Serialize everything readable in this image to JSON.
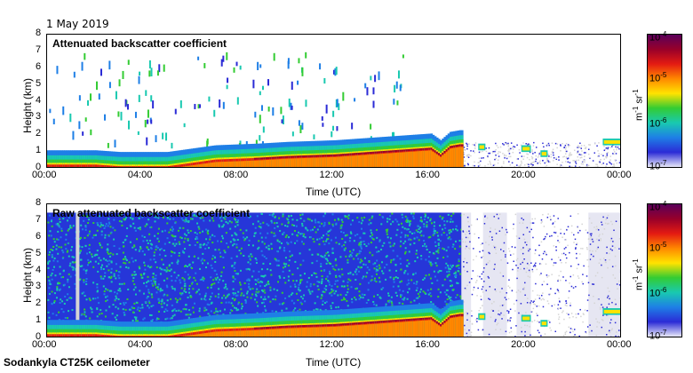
{
  "header": {
    "date": "1 May 2019"
  },
  "footer": {
    "instrument": "Sodankyla CT25K ceilometer"
  },
  "colors": {
    "colormap": [
      "#e8e8f8",
      "#2b2bd6",
      "#1e7fe6",
      "#19c9b0",
      "#33cc33",
      "#ffe300",
      "#ff8800",
      "#e41b12",
      "#98002a",
      "#5a005a"
    ],
    "missing": "#d4d4d4"
  },
  "chart_data": [
    {
      "type": "heatmap",
      "title": "Attenuated backscatter coefficient",
      "xlabel": "Time (UTC)",
      "ylabel": "Height (km)",
      "x_ticks": [
        "00:00",
        "04:00",
        "08:00",
        "12:00",
        "16:00",
        "20:00",
        "00:00"
      ],
      "y_ticks": [
        "0",
        "1",
        "2",
        "3",
        "4",
        "5",
        "6",
        "7",
        "8"
      ],
      "xlim_hours": [
        0,
        24
      ],
      "ylim_km": [
        0,
        8
      ],
      "colorbar": {
        "ticks": [
          "10-7",
          "10-6",
          "10-5",
          "10-4"
        ],
        "unit": "m-1 sr-1",
        "scale": "log",
        "range": [
          1e-07,
          0.0001
        ]
      },
      "boundary_layer_top_km": [
        [
          0,
          0.2
        ],
        [
          2,
          0.2
        ],
        [
          3,
          0.1
        ],
        [
          5,
          0.1
        ],
        [
          6,
          0.3
        ],
        [
          7,
          0.5
        ],
        [
          8.8,
          0.6
        ],
        [
          10,
          0.7
        ],
        [
          12,
          0.8
        ],
        [
          14,
          1.0
        ],
        [
          16,
          1.2
        ],
        [
          16.4,
          0.8
        ],
        [
          16.8,
          1.3
        ],
        [
          17.2,
          1.4
        ]
      ],
      "clear_sky_hours": [
        17.3,
        24
      ],
      "noise_filtered": true
    },
    {
      "type": "heatmap",
      "title": "Raw attenuated backscatter coefficient",
      "xlabel": "Time (UTC)",
      "ylabel": "Height (km)",
      "x_ticks": [
        "00:00",
        "04:00",
        "08:00",
        "12:00",
        "16:00",
        "20:00",
        "00:00"
      ],
      "y_ticks": [
        "0",
        "1",
        "2",
        "3",
        "4",
        "5",
        "6",
        "7",
        "8"
      ],
      "xlim_hours": [
        0,
        24
      ],
      "ylim_km": [
        0,
        8
      ],
      "colorbar": {
        "ticks": [
          "10-7",
          "10-6",
          "10-5",
          "10-4"
        ],
        "unit": "m-1 sr-1",
        "scale": "log",
        "range": [
          1e-07,
          0.0001
        ]
      },
      "boundary_layer_top_km": [
        [
          0,
          0.2
        ],
        [
          2,
          0.2
        ],
        [
          3,
          0.1
        ],
        [
          5,
          0.1
        ],
        [
          6,
          0.3
        ],
        [
          7,
          0.5
        ],
        [
          8.8,
          0.6
        ],
        [
          10,
          0.7
        ],
        [
          12,
          0.8
        ],
        [
          14,
          1.0
        ],
        [
          16,
          1.2
        ],
        [
          16.4,
          0.8
        ],
        [
          16.8,
          1.3
        ],
        [
          17.2,
          1.4
        ]
      ],
      "clear_sky_hours": [
        17.3,
        24
      ],
      "noise_filtered": false
    }
  ]
}
